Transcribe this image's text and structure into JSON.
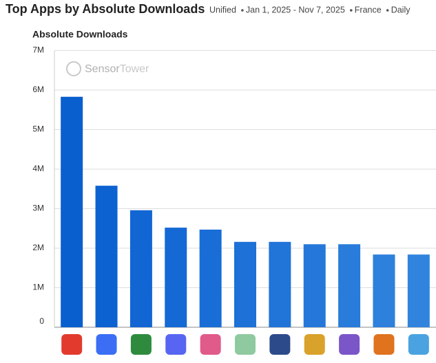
{
  "chart_data": {
    "type": "bar",
    "title": "Top Apps by Absolute Downloads",
    "subtitle": [
      "Unified",
      "Jan 1, 2025 - Nov 7, 2025",
      "France",
      "Daily"
    ],
    "y_label": "Absolute Downloads",
    "watermark": [
      "Sensor",
      "Tower"
    ],
    "categories": [
      null,
      null,
      null,
      null,
      null,
      null,
      null,
      null,
      null,
      null,
      null
    ],
    "values": [
      5830000,
      3580000,
      2960000,
      2520000,
      2470000,
      2160000,
      2160000,
      2100000,
      2100000,
      1840000,
      1840000
    ],
    "colors": [
      "#0a5fcf",
      "#0d62d1",
      "#1166d3",
      "#1569d4",
      "#196dd6",
      "#1d71d7",
      "#2174d8",
      "#2578d9",
      "#297cda",
      "#2d80dc",
      "#3184dd"
    ],
    "ylim": [
      0,
      7000000
    ],
    "yticks": [
      0,
      {
        "value": 1000000,
        "label": "1M"
      },
      {
        "value": 2000000,
        "label": "2M"
      },
      {
        "value": 3000000,
        "label": "3M"
      },
      {
        "value": 4000000,
        "label": "4M"
      },
      {
        "value": 5000000,
        "label": "5M"
      },
      {
        "value": 6000000,
        "label": "6M"
      },
      {
        "value": 7000000,
        "label": "7M"
      }
    ],
    "grid": true
  }
}
